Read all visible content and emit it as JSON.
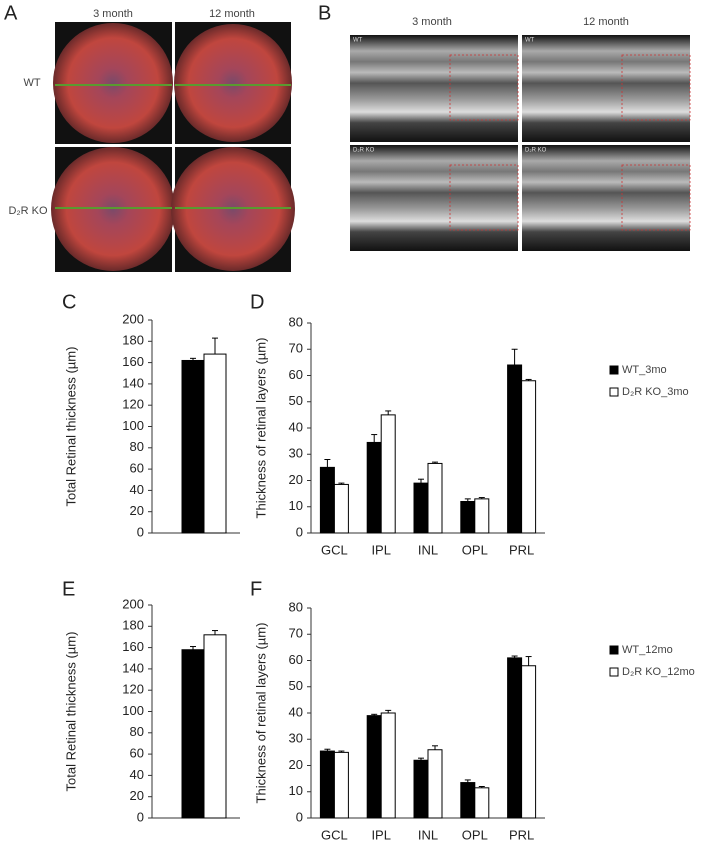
{
  "figure": {
    "panel_a": {
      "label": "A",
      "columns": [
        "3 month",
        "12 month"
      ],
      "rows": [
        "WT",
        "D₂R KO"
      ]
    },
    "panel_b": {
      "label": "B",
      "columns": [
        "3 month",
        "12 month"
      ],
      "rows": [
        "WT",
        "D₂R KO"
      ]
    }
  },
  "chart_data": [
    {
      "type": "bar",
      "panel": "C",
      "ylabel": "Total Retinal thickness (µm)",
      "ylim": [
        0,
        200
      ],
      "yticks": [
        0,
        20,
        40,
        60,
        80,
        100,
        120,
        140,
        160,
        180,
        200
      ],
      "series": [
        {
          "color": "#000000",
          "values": [
            162
          ],
          "errors": [
            2
          ]
        },
        {
          "color": "#ffffff",
          "values": [
            168
          ],
          "errors": [
            15
          ]
        }
      ]
    },
    {
      "type": "bar",
      "panel": "D",
      "ylabel": "Thickness of retinal layers (µm)",
      "categories": [
        "GCL",
        "IPL",
        "INL",
        "OPL",
        "PRL"
      ],
      "ylim": [
        0,
        80
      ],
      "yticks": [
        0,
        10,
        20,
        30,
        40,
        50,
        60,
        70,
        80
      ],
      "series": [
        {
          "name": "WT_3mo",
          "color": "#000000",
          "values": [
            25,
            34.5,
            19,
            12,
            64
          ],
          "errors": [
            3,
            3,
            1.5,
            1,
            6
          ]
        },
        {
          "name": "D₂R KO_3mo",
          "color": "#ffffff",
          "values": [
            18.5,
            45,
            26.5,
            13,
            58
          ],
          "errors": [
            0.5,
            1.5,
            0.5,
            0.5,
            0.5
          ]
        }
      ]
    },
    {
      "type": "bar",
      "panel": "E",
      "ylabel": "Total Retinal thickness (µm)",
      "ylim": [
        0,
        200
      ],
      "yticks": [
        0,
        20,
        40,
        60,
        80,
        100,
        120,
        140,
        160,
        180,
        200
      ],
      "series": [
        {
          "color": "#000000",
          "values": [
            158
          ],
          "errors": [
            3
          ]
        },
        {
          "color": "#ffffff",
          "values": [
            172
          ],
          "errors": [
            4
          ]
        }
      ]
    },
    {
      "type": "bar",
      "panel": "F",
      "ylabel": "Thickness of retinal layers (µm)",
      "categories": [
        "GCL",
        "IPL",
        "INL",
        "OPL",
        "PRL"
      ],
      "ylim": [
        0,
        80
      ],
      "yticks": [
        0,
        10,
        20,
        30,
        40,
        50,
        60,
        70,
        80
      ],
      "series": [
        {
          "name": "WT_12mo",
          "color": "#000000",
          "values": [
            25.5,
            39,
            22,
            13.5,
            61
          ],
          "errors": [
            0.7,
            0.5,
            0.8,
            1,
            0.7
          ]
        },
        {
          "name": "D₂R KO_12mo",
          "color": "#ffffff",
          "values": [
            25,
            40,
            26,
            11.5,
            58
          ],
          "errors": [
            0.5,
            1,
            1.5,
            0.5,
            3.5
          ]
        }
      ]
    }
  ]
}
